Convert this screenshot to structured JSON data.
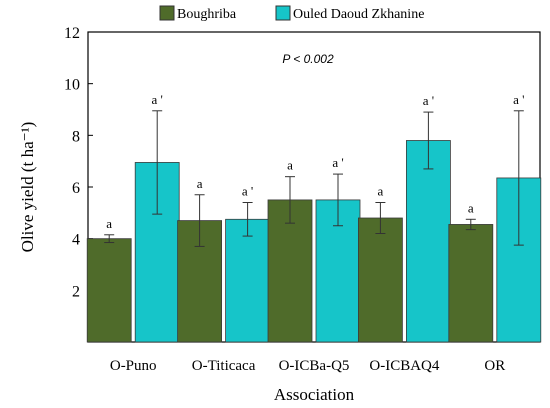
{
  "chart_data": {
    "type": "bar",
    "categories": [
      "O-Puno",
      "O-Titicaca",
      "O-ICBa-Q5",
      "O-ICBAQ4",
      "OR"
    ],
    "series": [
      {
        "name": "Boughriba",
        "color": "#4f6b2a",
        "values": [
          4.0,
          4.7,
          5.5,
          4.8,
          4.55
        ],
        "errors": [
          0.15,
          1.0,
          0.9,
          0.6,
          0.2
        ],
        "labels": [
          "a",
          "a",
          "a",
          "a",
          "a"
        ]
      },
      {
        "name": "Ouled Daoud Zkhanine",
        "color": "#16c5c9",
        "values": [
          6.95,
          4.75,
          5.5,
          7.8,
          6.35
        ],
        "errors": [
          2.0,
          0.65,
          1.0,
          1.1,
          2.6
        ],
        "labels": [
          "a '",
          "a '",
          "a '",
          "a '",
          "a '"
        ]
      }
    ],
    "xlabel": "Association",
    "ylabel": "Olive yield (t ha⁻¹)",
    "ylim": [
      0,
      12
    ],
    "yticks": [
      2,
      4,
      6,
      8,
      10,
      12
    ],
    "annotation": "P < 0.002",
    "grid": false,
    "legend": "top"
  }
}
